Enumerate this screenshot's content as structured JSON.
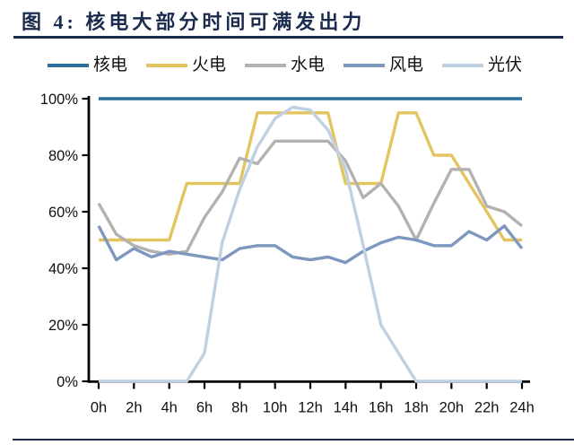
{
  "figure": {
    "title": "图 4: 核电大部分时间可满发出力"
  },
  "colors": {
    "title": "#1b2b4d",
    "divider": "#1b2b4d",
    "axis": "#000000",
    "tick_label": "#111111",
    "background": "#ffffff"
  },
  "chart_data": {
    "type": "line",
    "title": "图 4: 核电大部分时间可满发出力",
    "xlabel": "",
    "ylabel": "",
    "xlim": [
      0,
      24
    ],
    "ylim": [
      0,
      100
    ],
    "grid": false,
    "legend_position": "top",
    "x_hours": [
      0,
      1,
      2,
      3,
      4,
      5,
      6,
      7,
      8,
      9,
      10,
      11,
      12,
      13,
      14,
      15,
      16,
      17,
      18,
      19,
      20,
      21,
      22,
      23,
      24
    ],
    "x_tick_labels": [
      "0h",
      "2h",
      "4h",
      "6h",
      "8h",
      "10h",
      "12h",
      "14h",
      "16h",
      "18h",
      "20h",
      "22h",
      "24h"
    ],
    "y_tick_labels": [
      "0%",
      "20%",
      "40%",
      "60%",
      "80%",
      "100%"
    ],
    "series": [
      {
        "id": "nuclear",
        "label": "核电",
        "color": "#2c6f9d",
        "values": [
          100,
          100,
          100,
          100,
          100,
          100,
          100,
          100,
          100,
          100,
          100,
          100,
          100,
          100,
          100,
          100,
          100,
          100,
          100,
          100,
          100,
          100,
          100,
          100,
          100
        ]
      },
      {
        "id": "thermal",
        "label": "火电",
        "color": "#e3c560",
        "values": [
          50,
          50,
          50,
          50,
          50,
          70,
          70,
          70,
          70,
          95,
          95,
          95,
          95,
          95,
          70,
          70,
          70,
          95,
          95,
          80,
          80,
          70,
          60,
          50,
          50
        ]
      },
      {
        "id": "hydro",
        "label": "水电",
        "color": "#b3b2b0",
        "values": [
          63,
          52,
          48,
          46,
          45,
          46,
          58,
          67,
          79,
          77,
          85,
          85,
          85,
          85,
          78,
          65,
          70,
          62,
          50,
          63,
          75,
          75,
          62,
          60,
          55
        ]
      },
      {
        "id": "wind",
        "label": "风电",
        "color": "#7e97bf",
        "values": [
          55,
          43,
          47,
          44,
          46,
          45,
          44,
          43,
          47,
          48,
          48,
          44,
          43,
          44,
          42,
          46,
          49,
          51,
          50,
          48,
          48,
          53,
          50,
          55,
          47
        ]
      },
      {
        "id": "solar",
        "label": "光伏",
        "color": "#bfd0e2",
        "values": [
          0,
          0,
          0,
          0,
          0,
          0,
          10,
          49,
          68,
          83,
          93,
          97,
          96,
          89,
          75,
          48,
          20,
          10,
          0,
          0,
          0,
          0,
          0,
          0,
          0
        ]
      }
    ]
  }
}
